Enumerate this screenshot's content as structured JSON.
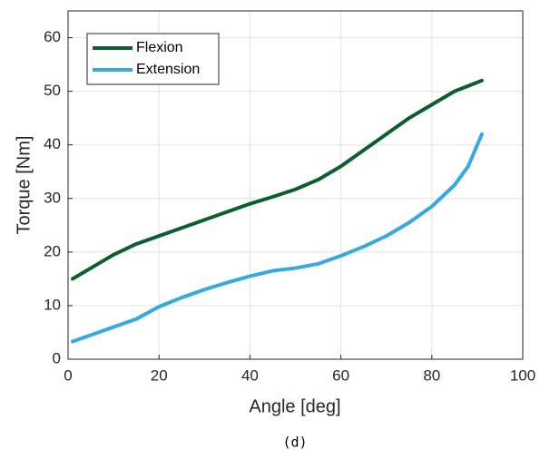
{
  "chart_data": {
    "type": "line",
    "xlabel": "Angle [deg]",
    "ylabel": "Torque [Nm]",
    "caption": "(d)",
    "x": [
      1,
      5,
      10,
      15,
      20,
      25,
      30,
      35,
      40,
      45,
      50,
      55,
      60,
      65,
      70,
      75,
      80,
      85,
      88,
      91
    ],
    "series": [
      {
        "name": "Flexion",
        "color": "#0b5e2e",
        "values": [
          15,
          17,
          19.5,
          21.5,
          23,
          24.5,
          26,
          27.5,
          29,
          30.3,
          31.7,
          33.5,
          36,
          39,
          42,
          45,
          47.5,
          50,
          51,
          52
        ]
      },
      {
        "name": "Extension",
        "color": "#36a9e1",
        "values": [
          3.3,
          4.5,
          6,
          7.5,
          9.8,
          11.5,
          13,
          14.3,
          15.5,
          16.5,
          17,
          17.8,
          19.3,
          21,
          23,
          25.5,
          28.5,
          32.5,
          36,
          42
        ]
      }
    ],
    "xlim": [
      0,
      100
    ],
    "xticks": [
      0,
      20,
      40,
      60,
      80,
      100
    ],
    "ylim": [
      0,
      65
    ],
    "yticks": [
      0,
      10,
      20,
      30,
      40,
      50,
      60
    ],
    "grid": true,
    "legend": "upper-left"
  }
}
